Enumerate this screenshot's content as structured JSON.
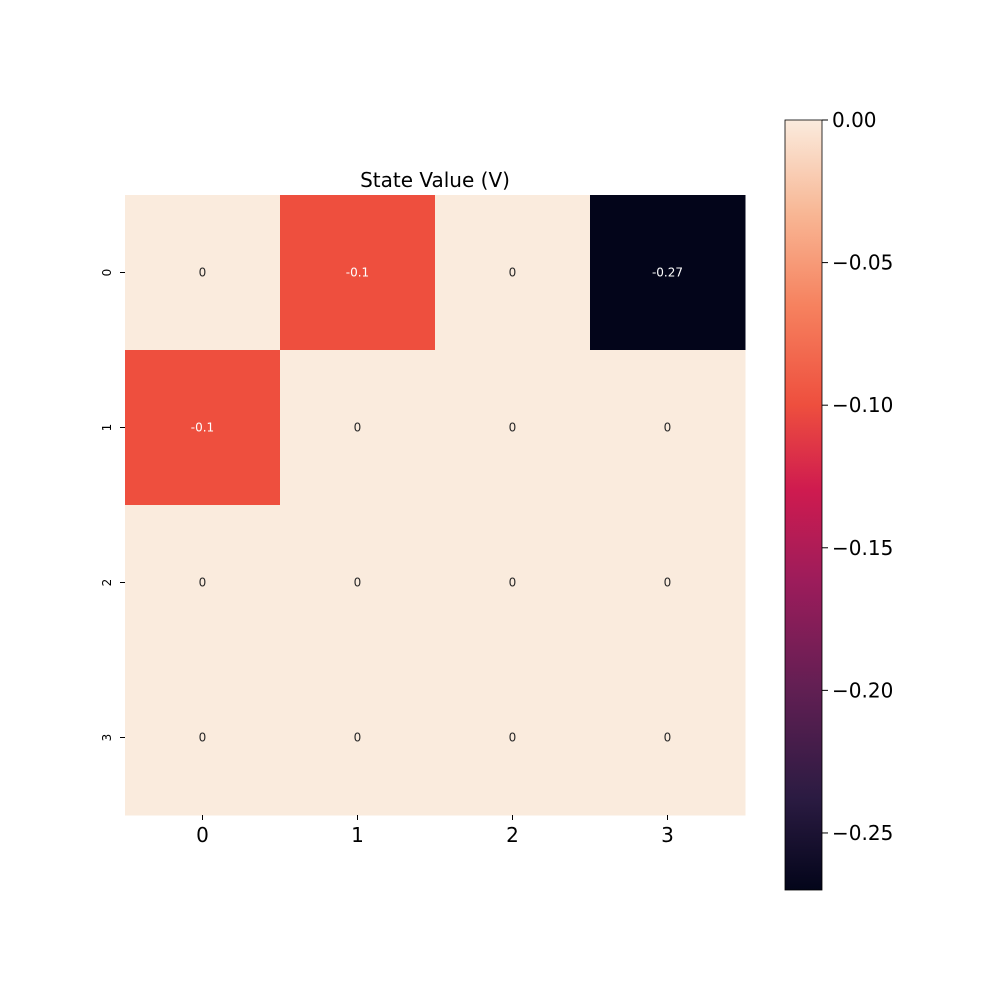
{
  "chart_data": {
    "type": "heatmap",
    "title": "State Value (V)",
    "xlabel": "",
    "ylabel": "",
    "x_categories": [
      "0",
      "1",
      "2",
      "3"
    ],
    "y_categories": [
      "0",
      "1",
      "2",
      "3"
    ],
    "values": [
      [
        0,
        -0.1,
        0,
        -0.27
      ],
      [
        -0.1,
        0,
        0,
        0
      ],
      [
        0,
        0,
        0,
        0
      ],
      [
        0,
        0,
        0,
        0
      ]
    ],
    "cell_labels": [
      [
        "0",
        "-0.1",
        "0",
        "-0.27"
      ],
      [
        "-0.1",
        "0",
        "0",
        "0"
      ],
      [
        "0",
        "0",
        "0",
        "0"
      ],
      [
        "0",
        "0",
        "0",
        "0"
      ]
    ],
    "colorbar": {
      "min": -0.27,
      "max": 0.0,
      "ticks": [
        0.0,
        -0.05,
        -0.1,
        -0.15,
        -0.2,
        -0.25
      ],
      "tick_labels": [
        "0.00",
        "−0.05",
        "−0.10",
        "−0.15",
        "−0.20",
        "−0.25"
      ],
      "colormap": "rocket"
    },
    "colors": {
      "zero": "#faebdd",
      "minus_0_1": "#ee4f3e",
      "minimum": "#03051a"
    }
  }
}
